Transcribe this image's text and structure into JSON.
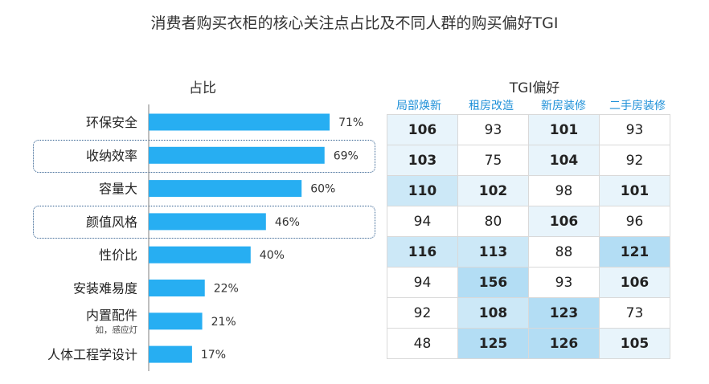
{
  "title": "消费者购买衣柜的核心关注点占比及不同人群的购买偏好TGI",
  "left_panel_title": "占比",
  "right_panel_title": "TGI偏好",
  "colors": {
    "bar": "#27aef2",
    "axis": "#aaaaaa",
    "accent": "#1e90d8"
  },
  "chart_data": [
    {
      "type": "bar",
      "orientation": "horizontal",
      "title": "占比",
      "categories": [
        "环保安全",
        "收纳效率",
        "容量大",
        "颜值风格",
        "性价比",
        "安装难易度",
        "内置配件",
        "人体工程学设计"
      ],
      "values": [
        71,
        69,
        60,
        46,
        40,
        22,
        21,
        17
      ],
      "value_labels": [
        "71%",
        "69%",
        "60%",
        "46%",
        "40%",
        "22%",
        "21%",
        "17%"
      ],
      "category_notes": {
        "内置配件": "如，感应灯"
      },
      "highlighted": [
        "收纳效率",
        "颜值风格"
      ],
      "xlim": [
        0,
        100
      ],
      "grid": false
    },
    {
      "type": "table",
      "title": "TGI偏好",
      "columns": [
        "局部焕新",
        "租房改造",
        "新房装修",
        "二手房装修"
      ],
      "rows": [
        "环保安全",
        "收纳效率",
        "容量大",
        "颜值风格",
        "性价比",
        "安装难易度",
        "内置配件",
        "人体工程学设计"
      ],
      "values": [
        [
          106,
          93,
          101,
          93
        ],
        [
          103,
          75,
          104,
          92
        ],
        [
          110,
          102,
          98,
          101
        ],
        [
          94,
          80,
          106,
          96
        ],
        [
          116,
          113,
          88,
          121
        ],
        [
          94,
          156,
          93,
          106
        ],
        [
          92,
          108,
          123,
          73
        ],
        [
          48,
          125,
          126,
          105
        ]
      ]
    }
  ]
}
